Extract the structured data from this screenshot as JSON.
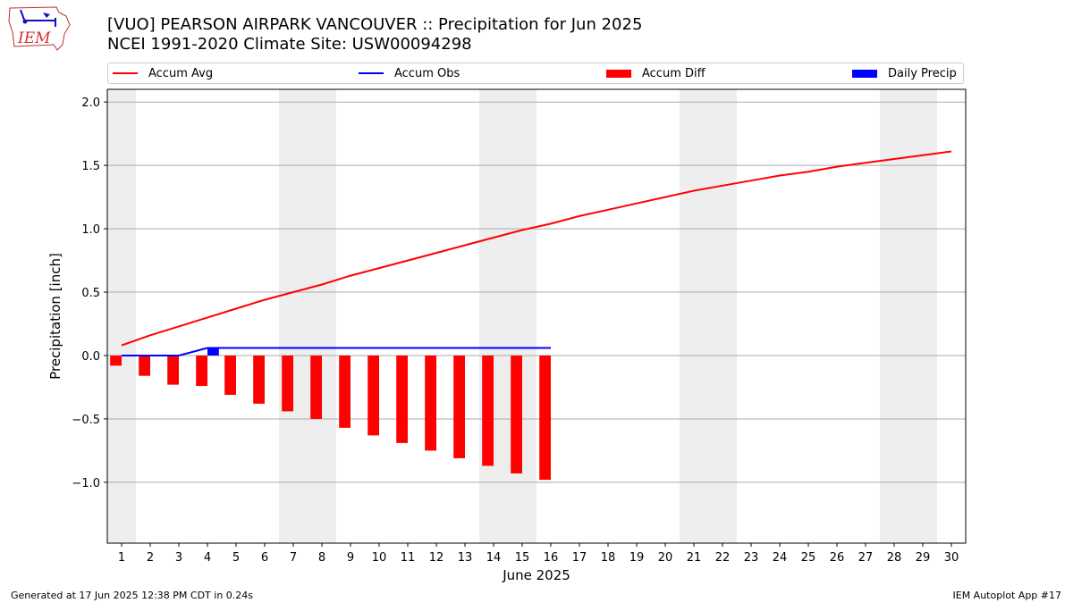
{
  "header": {
    "title_line1": "[VUO] PEARSON AIRPARK  VANCOUVER :: Precipitation for Jun 2025",
    "title_line2": "NCEI 1991-2020 Climate Site: USW00094298",
    "logo_text": "IEM"
  },
  "legend": {
    "accum_avg": "Accum Avg",
    "accum_obs": "Accum Obs",
    "accum_diff": "Accum Diff",
    "daily_precip": "Daily Precip"
  },
  "footer": {
    "left": "Generated at 17 Jun 2025 12:38 PM CDT in 0.24s",
    "right": "IEM Autoplot App #17"
  },
  "colors": {
    "accum_avg": "#ff0000",
    "accum_obs": "#0000ff",
    "accum_diff": "#ff0000",
    "daily_precip": "#0000ff",
    "weekend_shade": "#eeeeee",
    "grid": "#aaaaaa"
  },
  "chart_data": {
    "type": "bar",
    "xlabel": "June 2025",
    "ylabel": "Precipitation [inch]",
    "xlim": [
      0.5,
      30.5
    ],
    "ylim": [
      -1.48,
      2.1
    ],
    "yticks": [
      -1.0,
      -0.5,
      0.0,
      0.5,
      1.0,
      1.5,
      2.0
    ],
    "ytick_labels": [
      "−1.0",
      "−0.5",
      "0.0",
      "0.5",
      "1.0",
      "1.5",
      "2.0"
    ],
    "xticks": [
      1,
      2,
      3,
      4,
      5,
      6,
      7,
      8,
      9,
      10,
      11,
      12,
      13,
      14,
      15,
      16,
      17,
      18,
      19,
      20,
      21,
      22,
      23,
      24,
      25,
      26,
      27,
      28,
      29,
      30
    ],
    "grid": "horizontal",
    "weekends": [
      [
        1,
        1
      ],
      [
        7,
        8
      ],
      [
        14,
        15
      ],
      [
        21,
        22
      ],
      [
        28,
        29
      ]
    ],
    "series": [
      {
        "name": "Accum Avg",
        "kind": "line",
        "x": [
          1,
          2,
          3,
          4,
          5,
          6,
          7,
          8,
          9,
          10,
          11,
          12,
          13,
          14,
          15,
          16,
          17,
          18,
          19,
          20,
          21,
          22,
          23,
          24,
          25,
          26,
          27,
          28,
          29,
          30
        ],
        "values": [
          0.08,
          0.16,
          0.23,
          0.3,
          0.37,
          0.44,
          0.5,
          0.56,
          0.63,
          0.69,
          0.75,
          0.81,
          0.87,
          0.93,
          0.99,
          1.04,
          1.1,
          1.15,
          1.2,
          1.25,
          1.3,
          1.34,
          1.38,
          1.42,
          1.45,
          1.49,
          1.52,
          1.55,
          1.58,
          1.61
        ]
      },
      {
        "name": "Accum Obs",
        "kind": "line",
        "x": [
          1,
          2,
          3,
          4,
          5,
          6,
          7,
          8,
          9,
          10,
          11,
          12,
          13,
          14,
          15,
          16
        ],
        "values": [
          0.0,
          0.0,
          0.0,
          0.06,
          0.06,
          0.06,
          0.06,
          0.06,
          0.06,
          0.06,
          0.06,
          0.06,
          0.06,
          0.06,
          0.06,
          0.06
        ]
      },
      {
        "name": "Accum Diff",
        "kind": "bar",
        "offset": -0.2,
        "x": [
          1,
          2,
          3,
          4,
          5,
          6,
          7,
          8,
          9,
          10,
          11,
          12,
          13,
          14,
          15,
          16
        ],
        "values": [
          -0.08,
          -0.16,
          -0.23,
          -0.24,
          -0.31,
          -0.38,
          -0.44,
          -0.5,
          -0.57,
          -0.63,
          -0.69,
          -0.75,
          -0.81,
          -0.87,
          -0.93,
          -0.98
        ]
      },
      {
        "name": "Daily Precip",
        "kind": "bar",
        "offset": 0.2,
        "x": [
          4
        ],
        "values": [
          0.06
        ]
      }
    ]
  }
}
